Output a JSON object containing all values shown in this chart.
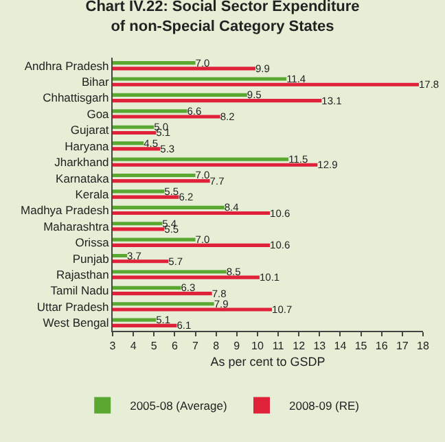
{
  "chart_data": {
    "type": "bar",
    "orientation": "horizontal",
    "title": "Chart IV.22: Social Sector Expenditure of non-Special Category States",
    "xlabel": "As per cent to GSDP",
    "categories": [
      "Andhra Pradesh",
      "Bihar",
      "Chhattisgarh",
      "Goa",
      "Gujarat",
      "Haryana",
      "Jharkhand",
      "Karnataka",
      "Kerala",
      "Madhya Pradesh",
      "Maharashtra",
      "Orissa",
      "Punjab",
      "Rajasthan",
      "Tamil Nadu",
      "Uttar Pradesh",
      "West Bengal"
    ],
    "series": [
      {
        "name": "2005-08 (Average)",
        "color": "#5aa832",
        "values": [
          7.0,
          11.4,
          9.5,
          6.6,
          5.0,
          4.5,
          11.5,
          7.0,
          5.5,
          8.4,
          5.4,
          7.0,
          3.7,
          8.5,
          6.3,
          7.9,
          5.1
        ],
        "value_labels": [
          "7.0",
          "11.4",
          "9.5",
          "6.6",
          "5.0",
          "4.5",
          "11.5",
          "7.0",
          "5.5",
          "8.4",
          "5.4",
          "7.0",
          "3.7",
          "8.5",
          "6.3",
          "7.9",
          "5.1"
        ]
      },
      {
        "name": "2008-09 (RE)",
        "color": "#e0213a",
        "values": [
          9.9,
          17.8,
          13.1,
          8.2,
          5.1,
          5.3,
          12.9,
          7.7,
          6.2,
          10.6,
          5.5,
          10.6,
          5.7,
          10.1,
          7.8,
          10.7,
          6.1
        ],
        "value_labels": [
          "9.9",
          "17.8",
          "13.1",
          "8.2",
          "5.1",
          "5.3",
          "12.9",
          "7.7",
          "6.2",
          "10.6",
          "5.5",
          "10.6",
          "5.7",
          "10.1",
          "7.8",
          "10.7",
          "6.1"
        ]
      }
    ],
    "xlim": [
      3,
      18
    ],
    "xticks": [
      3,
      4,
      5,
      6,
      7,
      8,
      9,
      10,
      11,
      12,
      13,
      14,
      15,
      16,
      17,
      18
    ],
    "grid": false,
    "legend": "bottom"
  }
}
